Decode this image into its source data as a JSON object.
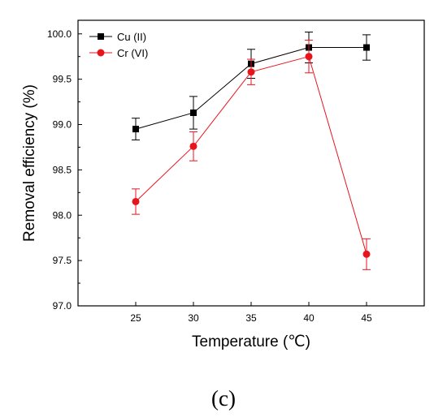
{
  "chart_data": {
    "type": "line",
    "title": "",
    "xlabel": "Temperature (℃)",
    "ylabel": "Removal efficiency (%)",
    "x": [
      25,
      30,
      35,
      40,
      45
    ],
    "xlim": [
      20,
      50
    ],
    "ylim": [
      97.0,
      100.15
    ],
    "x_ticks": [
      "25",
      "30",
      "35",
      "40",
      "45"
    ],
    "y_ticks": [
      "97.0",
      "97.5",
      "98.0",
      "98.5",
      "99.0",
      "99.5",
      "100.0"
    ],
    "grid": false,
    "legend_position": "top-left",
    "series": [
      {
        "name": "Cu (II)",
        "color": "#000000",
        "marker": "square",
        "values": [
          98.95,
          99.13,
          99.67,
          99.85,
          99.85
        ],
        "error": [
          0.12,
          0.18,
          0.16,
          0.17,
          0.14
        ]
      },
      {
        "name": "Cr (VI)",
        "color": "#e8141c",
        "marker": "circle",
        "values": [
          98.15,
          98.76,
          99.58,
          99.75,
          97.57
        ],
        "error": [
          0.14,
          0.16,
          0.14,
          0.18,
          0.17
        ]
      }
    ]
  },
  "caption": "(c)"
}
